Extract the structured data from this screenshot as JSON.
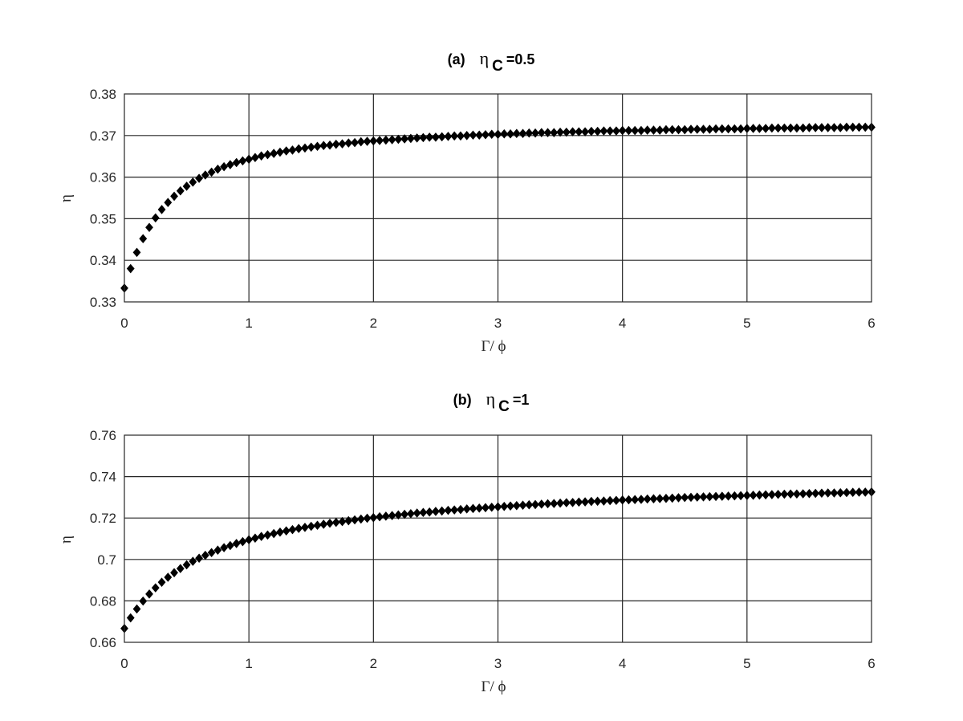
{
  "chart_data": [
    {
      "type": "scatter",
      "title_prefix": "(a)",
      "title_symbol": "η",
      "title_subscript": "C",
      "title_suffix": "=0.5",
      "xlabel": "Γ/  ϕ",
      "ylabel": "η",
      "xlim": [
        0,
        6
      ],
      "ylim": [
        0.33,
        0.38
      ],
      "xticks": [
        "0",
        "1",
        "2",
        "3",
        "4",
        "5",
        "6"
      ],
      "yticks": [
        "0.33",
        "0.34",
        "0.35",
        "0.36",
        "0.37",
        "0.38"
      ],
      "grid": true,
      "marker_color": "#000000",
      "series": [
        {
          "x": [
            0,
            0.05,
            0.1,
            0.15,
            0.2,
            0.25,
            0.3,
            0.35,
            0.4,
            0.45,
            0.5,
            0.55,
            0.6,
            0.65,
            0.7,
            0.75,
            0.8,
            0.85,
            0.9,
            0.95,
            1.0,
            1.05,
            1.1,
            1.15,
            1.2,
            1.25,
            1.3,
            1.35,
            1.4,
            1.45,
            1.5,
            1.55,
            1.6,
            1.65,
            1.7,
            1.75,
            1.8,
            1.85,
            1.9,
            1.95,
            2.0,
            2.05,
            2.1,
            2.15,
            2.2,
            2.25,
            2.3,
            2.35,
            2.4,
            2.45,
            2.5,
            2.55,
            2.6,
            2.65,
            2.7,
            2.75,
            2.8,
            2.85,
            2.9,
            2.95,
            3.0,
            3.05,
            3.1,
            3.15,
            3.2,
            3.25,
            3.3,
            3.35,
            3.4,
            3.45,
            3.5,
            3.55,
            3.6,
            3.65,
            3.7,
            3.75,
            3.8,
            3.85,
            3.9,
            3.95,
            4.0,
            4.05,
            4.1,
            4.15,
            4.2,
            4.25,
            4.3,
            4.35,
            4.4,
            4.45,
            4.5,
            4.55,
            4.6,
            4.65,
            4.7,
            4.75,
            4.8,
            4.85,
            4.9,
            4.95,
            5.0,
            5.05,
            5.1,
            5.15,
            5.2,
            5.25,
            5.3,
            5.35,
            5.4,
            5.45,
            5.5,
            5.55,
            5.6,
            5.65,
            5.7,
            5.75,
            5.8,
            5.85,
            5.9,
            5.95,
            6.0
          ],
          "y": [
            0.3333,
            0.338,
            0.3419,
            0.3452,
            0.3479,
            0.3502,
            0.3522,
            0.3539,
            0.3554,
            0.3567,
            0.3578,
            0.3588,
            0.3597,
            0.3605,
            0.3612,
            0.3619,
            0.3625,
            0.363,
            0.3635,
            0.3639,
            0.3643,
            0.3647,
            0.3651,
            0.3654,
            0.3657,
            0.366,
            0.3663,
            0.3665,
            0.3668,
            0.367,
            0.3672,
            0.3674,
            0.3676,
            0.3677,
            0.3679,
            0.368,
            0.3682,
            0.3683,
            0.3685,
            0.3686,
            0.3687,
            0.3688,
            0.3689,
            0.369,
            0.3691,
            0.3692,
            0.3693,
            0.3694,
            0.3695,
            0.3696,
            0.3696,
            0.3697,
            0.3698,
            0.3699,
            0.3699,
            0.37,
            0.3701,
            0.3701,
            0.3702,
            0.3703,
            0.3703,
            0.3704,
            0.3704,
            0.3705,
            0.3705,
            0.3706,
            0.3706,
            0.3707,
            0.3707,
            0.3707,
            0.3708,
            0.3708,
            0.3709,
            0.3709,
            0.3709,
            0.371,
            0.371,
            0.3711,
            0.3711,
            0.3711,
            0.3712,
            0.3712,
            0.3712,
            0.3712,
            0.3713,
            0.3713,
            0.3713,
            0.3714,
            0.3714,
            0.3714,
            0.3714,
            0.3715,
            0.3715,
            0.3715,
            0.3715,
            0.3716,
            0.3716,
            0.3716,
            0.3716,
            0.3716,
            0.3717,
            0.3717,
            0.3717,
            0.3717,
            0.3718,
            0.3718,
            0.3718,
            0.3718,
            0.3718,
            0.3718,
            0.3719,
            0.3719,
            0.3719,
            0.3719,
            0.3719,
            0.3719,
            0.372,
            0.372,
            0.372,
            0.372,
            0.372
          ]
        }
      ]
    },
    {
      "type": "scatter",
      "title_prefix": "(b)",
      "title_symbol": "η",
      "title_subscript": "C",
      "title_suffix": "=1",
      "xlabel": "Γ/  ϕ",
      "ylabel": "η",
      "xlim": [
        0,
        6
      ],
      "ylim": [
        0.66,
        0.76
      ],
      "xticks": [
        "0",
        "1",
        "2",
        "3",
        "4",
        "5",
        "6"
      ],
      "yticks": [
        "0.66",
        "0.68",
        "0.7",
        "0.72",
        "0.74",
        "0.76"
      ],
      "grid": true,
      "marker_color": "#000000",
      "series": [
        {
          "x": [
            0,
            0.05,
            0.1,
            0.15,
            0.2,
            0.25,
            0.3,
            0.35,
            0.4,
            0.45,
            0.5,
            0.55,
            0.6,
            0.65,
            0.7,
            0.75,
            0.8,
            0.85,
            0.9,
            0.95,
            1.0,
            1.05,
            1.1,
            1.15,
            1.2,
            1.25,
            1.3,
            1.35,
            1.4,
            1.45,
            1.5,
            1.55,
            1.6,
            1.65,
            1.7,
            1.75,
            1.8,
            1.85,
            1.9,
            1.95,
            2.0,
            2.05,
            2.1,
            2.15,
            2.2,
            2.25,
            2.3,
            2.35,
            2.4,
            2.45,
            2.5,
            2.55,
            2.6,
            2.65,
            2.7,
            2.75,
            2.8,
            2.85,
            2.9,
            2.95,
            3.0,
            3.05,
            3.1,
            3.15,
            3.2,
            3.25,
            3.3,
            3.35,
            3.4,
            3.45,
            3.5,
            3.55,
            3.6,
            3.65,
            3.7,
            3.75,
            3.8,
            3.85,
            3.9,
            3.95,
            4.0,
            4.05,
            4.1,
            4.15,
            4.2,
            4.25,
            4.3,
            4.35,
            4.4,
            4.45,
            4.5,
            4.55,
            4.6,
            4.65,
            4.7,
            4.75,
            4.8,
            4.85,
            4.9,
            4.95,
            5.0,
            5.05,
            5.1,
            5.15,
            5.2,
            5.25,
            5.3,
            5.35,
            5.4,
            5.45,
            5.5,
            5.55,
            5.6,
            5.65,
            5.7,
            5.75,
            5.8,
            5.85,
            5.9,
            5.95,
            6.0
          ],
          "y": [
            0.6667,
            0.6718,
            0.6761,
            0.6799,
            0.6833,
            0.6863,
            0.689,
            0.6914,
            0.6936,
            0.6956,
            0.6974,
            0.6991,
            0.7006,
            0.702,
            0.7033,
            0.7045,
            0.7057,
            0.7067,
            0.7077,
            0.7086,
            0.7095,
            0.7103,
            0.7111,
            0.7118,
            0.7125,
            0.7132,
            0.7138,
            0.7144,
            0.715,
            0.7155,
            0.716,
            0.7165,
            0.717,
            0.7175,
            0.7179,
            0.7183,
            0.7187,
            0.7191,
            0.7195,
            0.7199,
            0.7202,
            0.7206,
            0.7209,
            0.7212,
            0.7215,
            0.7218,
            0.7221,
            0.7224,
            0.7227,
            0.7229,
            0.7232,
            0.7234,
            0.7237,
            0.7239,
            0.7241,
            0.7244,
            0.7246,
            0.7248,
            0.725,
            0.7252,
            0.7254,
            0.7256,
            0.7258,
            0.726,
            0.7262,
            0.7264,
            0.7265,
            0.7267,
            0.7269,
            0.727,
            0.7272,
            0.7274,
            0.7275,
            0.7277,
            0.7278,
            0.728,
            0.7281,
            0.7282,
            0.7284,
            0.7285,
            0.7287,
            0.7288,
            0.7289,
            0.729,
            0.7292,
            0.7293,
            0.7294,
            0.7295,
            0.7296,
            0.7298,
            0.7299,
            0.73,
            0.7301,
            0.7302,
            0.7303,
            0.7304,
            0.7305,
            0.7306,
            0.7307,
            0.7308,
            0.7309,
            0.731,
            0.7311,
            0.7312,
            0.7313,
            0.7314,
            0.7315,
            0.7316,
            0.7316,
            0.7317,
            0.7318,
            0.7319,
            0.732,
            0.7321,
            0.7321,
            0.7322,
            0.7323,
            0.7324,
            0.7325,
            0.7325,
            0.7326
          ]
        }
      ]
    }
  ]
}
